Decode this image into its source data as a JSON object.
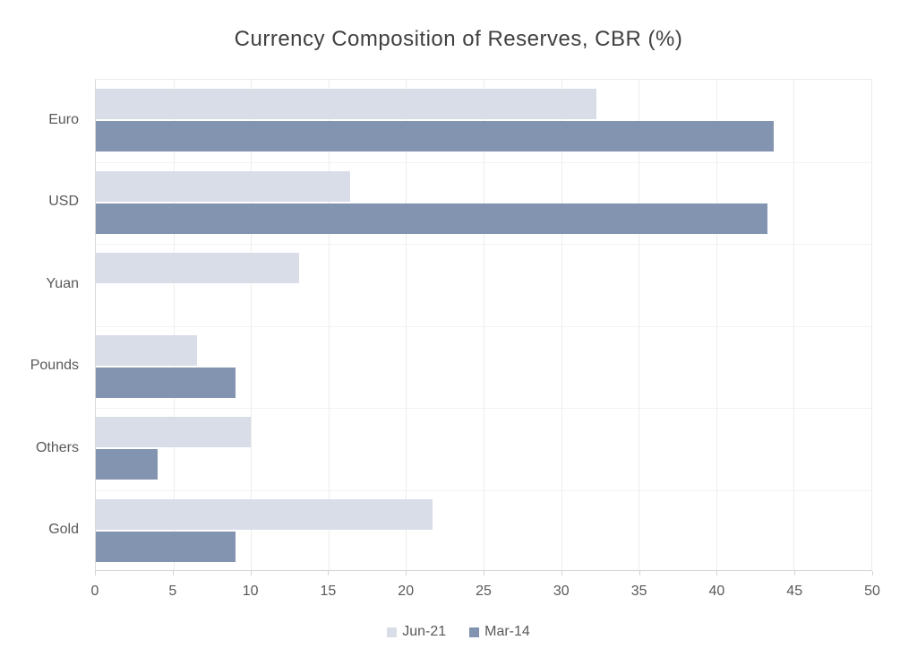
{
  "chart_data": {
    "type": "bar",
    "orientation": "horizontal",
    "title": "Currency Composition of Reserves, CBR (%)",
    "xlabel": "",
    "ylabel": "",
    "categories": [
      "Euro",
      "USD",
      "Yuan",
      "Pounds",
      "Others",
      "Gold"
    ],
    "series": [
      {
        "name": "Jun-21",
        "color": "#d8dde8",
        "values": [
          32.3,
          16.4,
          13.1,
          6.5,
          10.0,
          21.7
        ]
      },
      {
        "name": "Mar-14",
        "color": "#8294b0",
        "values": [
          43.7,
          43.3,
          0,
          9.0,
          4.0,
          9.0
        ]
      }
    ],
    "xlim": [
      0,
      50
    ],
    "x_ticks": [
      0,
      5,
      10,
      15,
      20,
      25,
      30,
      35,
      40,
      45,
      50
    ],
    "grid": true,
    "legend_position": "bottom"
  },
  "colors": {
    "title_text": "#404040",
    "axis_text": "#595959",
    "gridline": "#ececec",
    "row_separator": "#f2f2f2",
    "axis_line": "#d4d4d4"
  }
}
